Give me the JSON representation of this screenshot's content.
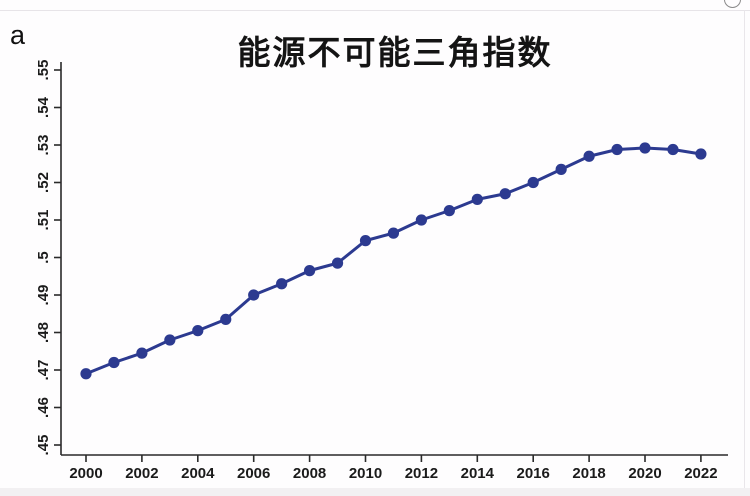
{
  "frame": {
    "top_right_glyph": "partial-circle"
  },
  "panel_label": "a",
  "chart_data": {
    "type": "line",
    "title": "能源不可能三角指数",
    "xlabel": "",
    "ylabel": "",
    "x": [
      2000,
      2001,
      2002,
      2003,
      2004,
      2005,
      2006,
      2007,
      2008,
      2009,
      2010,
      2011,
      2012,
      2013,
      2014,
      2015,
      2016,
      2017,
      2018,
      2019,
      2020,
      2021,
      2022
    ],
    "series": [
      {
        "name": "能源不可能三角指数",
        "values": [
          0.469,
          0.472,
          0.4745,
          0.478,
          0.4805,
          0.4835,
          0.49,
          0.493,
          0.4965,
          0.4985,
          0.5045,
          0.5065,
          0.51,
          0.5125,
          0.5155,
          0.517,
          0.52,
          0.5235,
          0.527,
          0.5288,
          0.5292,
          0.5288,
          0.5276
        ]
      }
    ],
    "ylim": [
      0.45,
      0.55
    ],
    "xlim": [
      2000,
      2022
    ],
    "ytick_values": [
      0.45,
      0.46,
      0.47,
      0.48,
      0.49,
      0.5,
      0.51,
      0.52,
      0.53,
      0.54,
      0.55
    ],
    "ytick_labels": [
      ".45",
      ".46",
      ".47",
      ".48",
      ".49",
      ".5",
      ".51",
      ".52",
      ".53",
      ".54",
      ".55"
    ],
    "xtick_values": [
      2000,
      2002,
      2004,
      2006,
      2008,
      2010,
      2012,
      2014,
      2016,
      2018,
      2020,
      2022
    ],
    "xtick_labels": [
      "2000",
      "2002",
      "2004",
      "2006",
      "2008",
      "2010",
      "2012",
      "2014",
      "2016",
      "2018",
      "2020",
      "2022"
    ],
    "grid": false,
    "legend_position": "none",
    "line_color": "#2c3a90",
    "marker_color": "#2c3a90",
    "axis_color": "#2a2a2a",
    "marker_style": "filled-circle"
  }
}
